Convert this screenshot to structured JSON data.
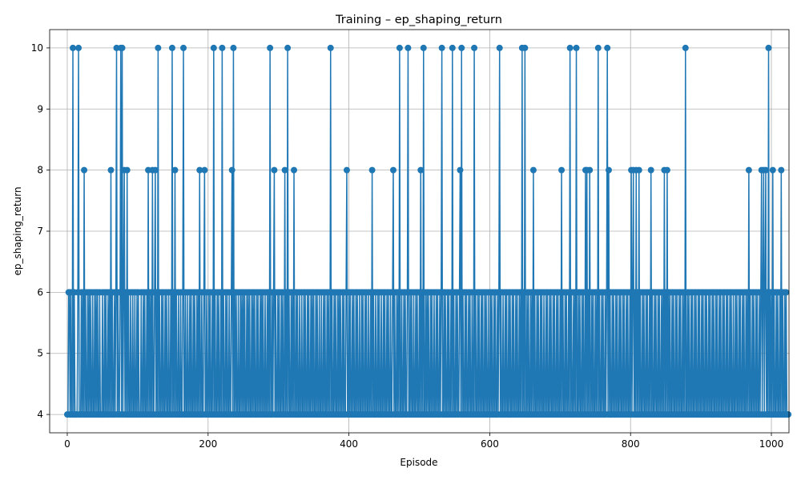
{
  "chart_data": {
    "type": "line",
    "title": "Training – ep_shaping_return",
    "xlabel": "Episode",
    "ylabel": "ep_shaping_return",
    "xlim": [
      -25,
      1025
    ],
    "ylim": [
      3.7,
      10.3
    ],
    "xticks": [
      0,
      200,
      400,
      600,
      800,
      1000
    ],
    "xtick_labels": [
      "0",
      "200",
      "400",
      "600",
      "800",
      "1000"
    ],
    "yticks": [
      4,
      5,
      6,
      7,
      8,
      9,
      10
    ],
    "ytick_labels": [
      "4",
      "5",
      "6",
      "7",
      "8",
      "9",
      "10"
    ],
    "grid": true,
    "marker": "circle",
    "color": "#1f77b4",
    "series": [
      {
        "x_start": 0,
        "x_step": 1,
        "values": [
          4,
          4,
          6,
          6,
          4,
          6,
          4,
          4,
          10,
          4,
          6,
          4,
          4,
          4,
          4,
          6,
          10,
          4,
          4,
          4,
          6,
          4,
          6,
          4,
          8,
          4,
          6,
          4,
          4,
          6,
          4,
          6,
          4,
          6,
          4,
          4,
          6,
          4,
          4,
          6,
          4,
          6,
          4,
          6,
          4,
          4,
          6,
          4,
          4,
          4,
          6,
          4,
          4,
          6,
          4,
          6,
          4,
          4,
          6,
          4,
          6,
          4,
          8,
          4,
          6,
          4,
          4,
          6,
          4,
          6,
          10,
          4,
          6,
          4,
          4,
          6,
          10,
          4,
          10,
          4,
          6,
          8,
          4,
          6,
          4,
          8,
          4,
          6,
          4,
          4,
          6,
          4,
          4,
          6,
          4,
          4,
          6,
          4,
          4,
          6,
          4,
          6,
          4,
          4,
          4,
          6,
          4,
          4,
          6,
          4,
          6,
          4,
          4,
          6,
          4,
          8,
          4,
          6,
          4,
          6,
          4,
          8,
          4,
          4,
          6,
          8,
          4,
          6,
          4,
          10,
          4,
          6,
          4,
          4,
          6,
          4,
          6,
          4,
          4,
          6,
          4,
          6,
          4,
          4,
          6,
          4,
          4,
          6,
          4,
          10,
          4,
          6,
          4,
          8,
          4,
          6,
          4,
          4,
          6,
          4,
          4,
          6,
          4,
          4,
          6,
          10,
          4,
          4,
          6,
          4,
          4,
          6,
          4,
          4,
          6,
          4,
          6,
          4,
          4,
          6,
          4,
          6,
          4,
          4,
          6,
          4,
          6,
          4,
          8,
          4,
          4,
          6,
          4,
          4,
          6,
          8,
          4,
          4,
          6,
          4,
          4,
          6,
          4,
          6,
          4,
          4,
          6,
          4,
          10,
          4,
          6,
          4,
          4,
          6,
          4,
          6,
          4,
          4,
          6,
          4,
          10,
          4,
          6,
          4,
          4,
          6,
          4,
          6,
          4,
          4,
          6,
          4,
          4,
          6,
          8,
          4,
          10,
          4,
          6,
          4,
          6,
          4,
          4,
          6,
          4,
          4,
          6,
          4,
          6,
          4,
          6,
          4,
          6,
          4,
          4,
          6,
          4,
          6,
          4,
          6,
          4,
          4,
          6,
          4,
          6,
          4,
          6,
          4,
          4,
          6,
          4,
          6,
          4,
          4,
          6,
          4,
          6,
          4,
          6,
          4,
          4,
          6,
          4,
          4,
          6,
          4,
          6,
          4,
          10,
          4,
          4,
          6,
          4,
          6,
          8,
          4,
          6,
          4,
          4,
          6,
          4,
          6,
          4,
          4,
          6,
          4,
          6,
          4,
          4,
          8,
          4,
          6,
          4,
          10,
          4,
          6,
          4,
          4,
          6,
          4,
          6,
          4,
          8,
          4,
          4,
          6,
          4,
          6,
          4,
          4,
          6,
          4,
          4,
          6,
          4,
          4,
          6,
          4,
          6,
          4,
          4,
          6,
          4,
          6,
          4,
          4,
          6,
          4,
          6,
          4,
          6,
          4,
          4,
          6,
          4,
          6,
          4,
          4,
          6,
          4,
          4,
          6,
          4,
          4,
          6,
          4,
          6,
          4,
          4,
          6,
          4,
          6,
          4,
          4,
          10,
          4,
          6,
          4,
          4,
          6,
          4,
          6,
          4,
          4,
          6,
          4,
          6,
          4,
          6,
          4,
          4,
          6,
          4,
          6,
          4,
          4,
          6,
          8,
          4,
          4,
          6,
          4,
          6,
          4,
          4,
          6,
          4,
          6,
          4,
          4,
          6,
          4,
          6,
          4,
          4,
          6,
          4,
          4,
          6,
          4,
          6,
          4,
          4,
          6,
          4,
          6,
          4,
          4,
          6,
          4,
          4,
          6,
          4,
          8,
          4,
          6,
          4,
          4,
          6,
          4,
          4,
          6,
          4,
          6,
          4,
          4,
          6,
          4,
          4,
          6,
          4,
          6,
          4,
          4,
          6,
          4,
          6,
          4,
          4,
          6,
          4,
          4,
          6,
          8,
          4,
          6,
          4,
          4,
          6,
          4,
          6,
          4,
          10,
          4,
          4,
          6,
          4,
          4,
          6,
          4,
          6,
          4,
          4,
          6,
          10,
          4,
          4,
          6,
          4,
          6,
          4,
          4,
          6,
          4,
          4,
          6,
          4,
          6,
          4,
          4,
          6,
          4,
          8,
          4,
          6,
          4,
          10,
          4,
          4,
          6,
          4,
          6,
          4,
          6,
          4,
          4,
          6,
          4,
          6,
          4,
          4,
          6,
          4,
          4,
          6,
          4,
          6,
          4,
          4,
          6,
          4,
          6,
          10,
          4,
          4,
          6,
          4,
          6,
          4,
          4,
          6,
          4,
          6,
          4,
          4,
          6,
          4,
          10,
          4,
          6,
          4,
          4,
          6,
          4,
          6,
          4,
          4,
          6,
          8,
          4,
          10,
          4,
          6,
          4,
          4,
          6,
          4,
          6,
          4,
          4,
          6,
          4,
          6,
          4,
          4,
          6,
          4,
          4,
          10,
          4,
          6,
          4,
          4,
          6,
          4,
          6,
          4,
          4,
          6,
          4,
          6,
          4,
          4,
          6,
          4,
          6,
          4,
          4,
          6,
          4,
          4,
          6,
          4,
          6,
          4,
          4,
          6,
          4,
          6,
          4,
          4,
          6,
          4,
          6,
          10,
          4,
          6,
          4,
          4,
          6,
          4,
          4,
          6,
          4,
          6,
          4,
          4,
          6,
          4,
          6,
          4,
          4,
          6,
          4,
          6,
          4,
          4,
          6,
          4,
          6,
          4,
          4,
          6,
          4,
          6,
          4,
          10,
          4,
          6,
          4,
          10,
          4,
          4,
          6,
          4,
          6,
          4,
          4,
          6,
          4,
          6,
          4,
          8,
          4,
          6,
          4,
          4,
          6,
          4,
          6,
          4,
          4,
          6,
          4,
          6,
          4,
          4,
          6,
          4,
          4,
          6,
          4,
          6,
          4,
          4,
          6,
          4,
          6,
          4,
          4,
          6,
          4,
          6,
          4,
          4,
          6,
          4,
          6,
          4,
          4,
          6,
          4,
          8,
          4,
          6,
          4,
          4,
          6,
          4,
          6,
          4,
          4,
          6,
          4,
          10,
          4,
          6,
          4,
          4,
          6,
          4,
          6,
          4,
          10,
          4,
          4,
          6,
          4,
          6,
          4,
          4,
          6,
          4,
          6,
          4,
          4,
          8,
          4,
          8,
          4,
          6,
          4,
          8,
          4,
          4,
          6,
          4,
          6,
          4,
          4,
          6,
          4,
          6,
          4,
          10,
          4,
          6,
          4,
          4,
          6,
          4,
          6,
          4,
          4,
          6,
          4,
          6,
          10,
          4,
          8,
          4,
          6,
          4,
          4,
          6,
          4,
          6,
          4,
          4,
          6,
          4,
          6,
          4,
          4,
          6,
          4,
          6,
          4,
          4,
          6,
          4,
          6,
          4,
          4,
          6,
          4,
          6,
          4,
          4,
          6,
          4,
          8,
          4,
          6,
          8,
          4,
          6,
          4,
          8,
          4,
          6,
          4,
          8,
          4,
          6,
          4,
          4,
          6,
          4,
          6,
          4,
          4,
          6,
          4,
          6,
          4,
          4,
          6,
          4,
          8,
          4,
          6,
          4,
          4,
          6,
          4,
          6,
          4,
          4,
          6,
          4,
          6,
          4,
          4,
          6,
          4,
          6,
          4,
          8,
          4,
          6,
          4,
          8,
          4,
          6,
          4,
          6,
          4,
          4,
          6,
          4,
          6,
          4,
          4,
          6,
          4,
          6,
          4,
          4,
          6,
          4,
          6,
          4,
          4,
          6,
          4,
          6,
          4,
          10,
          4,
          4,
          6,
          4,
          6,
          4,
          4,
          6,
          4,
          6,
          4,
          4,
          6,
          4,
          6,
          4,
          4,
          6,
          4,
          6,
          4,
          4,
          6,
          4,
          6,
          4,
          4,
          6,
          4,
          6,
          4,
          4,
          6,
          4,
          6,
          4,
          4,
          6,
          4,
          6,
          4,
          4,
          6,
          4,
          6,
          4,
          4,
          6,
          4,
          6,
          4,
          4,
          6,
          4,
          6,
          4,
          4,
          6,
          4,
          6,
          4,
          4,
          6,
          4,
          6,
          4,
          4,
          6,
          4,
          4,
          6,
          4,
          6,
          4,
          4,
          6,
          4,
          6,
          4,
          4,
          6,
          4,
          6,
          4,
          4,
          6,
          4,
          6,
          4,
          8,
          4,
          6,
          4,
          4,
          6,
          4,
          6,
          4,
          4,
          6,
          4,
          6,
          4,
          4,
          6,
          4,
          6,
          8,
          4,
          6,
          8,
          4,
          6,
          8,
          4,
          6,
          4,
          10,
          4,
          6,
          4,
          6,
          4,
          8,
          4,
          6,
          4,
          4,
          6,
          4,
          6,
          4,
          4,
          6,
          4,
          8,
          4,
          6,
          4,
          4,
          6,
          4,
          6,
          4,
          4,
          4
        ]
      }
    ]
  }
}
